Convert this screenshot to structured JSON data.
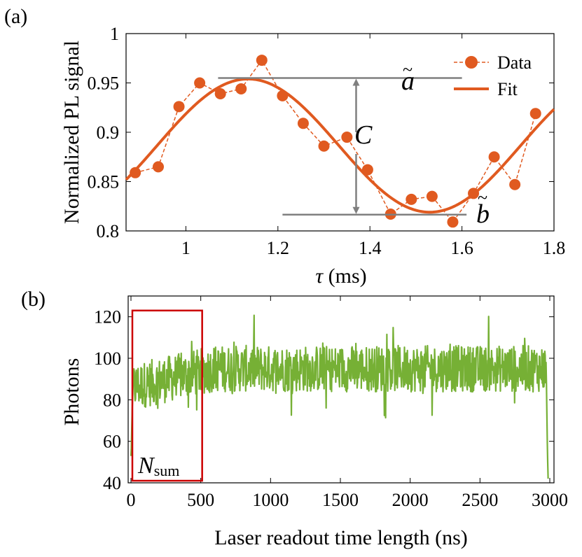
{
  "colors": {
    "series": "#e05a20",
    "photons": "#76b035",
    "annotation": "#7f7f7f",
    "box": "#cc0000"
  },
  "chart_data": [
    {
      "id": "a",
      "panel_label": "(a)",
      "type": "line",
      "xlabel": "τ (ms)",
      "xlabel_symbol": "τ",
      "xlabel_unit": " (ms)",
      "ylabel": "Normalized PL signal",
      "xlim": [
        0.87,
        1.8
      ],
      "ylim": [
        0.8,
        1.0
      ],
      "xticks": [
        1,
        1.2,
        1.4,
        1.6,
        1.8
      ],
      "xtick_labels": [
        "1",
        "1.2",
        "1.4",
        "1.6",
        "1.8"
      ],
      "yticks": [
        0.8,
        0.85,
        0.9,
        0.95,
        1.0
      ],
      "ytick_labels": [
        "0.8",
        "0.85",
        "0.9",
        "0.95",
        "1"
      ],
      "legend": {
        "position": "top-right",
        "entries": [
          "Data",
          "Fit"
        ]
      },
      "series": [
        {
          "name": "Data",
          "style": "dashed line with circle markers",
          "x": [
            0.89,
            0.94,
            0.985,
            1.03,
            1.075,
            1.12,
            1.165,
            1.21,
            1.255,
            1.3,
            1.35,
            1.395,
            1.445,
            1.49,
            1.535,
            1.58,
            1.625,
            1.67,
            1.715,
            1.76
          ],
          "y": [
            0.859,
            0.865,
            0.926,
            0.95,
            0.939,
            0.944,
            0.973,
            0.937,
            0.909,
            0.886,
            0.895,
            0.862,
            0.817,
            0.832,
            0.835,
            0.809,
            0.838,
            0.875,
            0.847,
            0.919
          ]
        },
        {
          "name": "Fit",
          "style": "solid line",
          "function": "sine",
          "x_range": [
            0.87,
            1.8
          ],
          "offset": 0.8865,
          "amplitude": 0.0675,
          "peak_x": 1.135,
          "period": 0.79
        }
      ],
      "annotations": {
        "a_label_main": "a",
        "a_label_accent": "~",
        "b_label_main": "b",
        "b_label_accent": "~",
        "c_label": "C",
        "a_level": 0.955,
        "b_level": 0.8165,
        "a_line_x": [
          1.07,
          1.6
        ],
        "b_line_x": [
          1.21,
          1.61
        ],
        "arrow_x": 1.37
      }
    },
    {
      "id": "b",
      "panel_label": "(b)",
      "type": "line",
      "xlabel": "Laser readout time length (ns)",
      "ylabel": "Photons",
      "xlim": [
        -20,
        3030
      ],
      "ylim": [
        40,
        130
      ],
      "xticks": [
        0,
        500,
        1000,
        1500,
        2000,
        2500,
        3000
      ],
      "xtick_labels": [
        "0",
        "500",
        "1000",
        "1500",
        "2000",
        "2500",
        "3000"
      ],
      "yticks": [
        40,
        60,
        80,
        100,
        120
      ],
      "ytick_labels": [
        "40",
        "60",
        "80",
        "100",
        "120"
      ],
      "series": [
        {
          "name": "Photons",
          "style": "solid noisy line",
          "x_start": 0,
          "x_end": 2990,
          "x_step": 3,
          "baseline_early": 86,
          "baseline_late": 95,
          "noise_amplitude": 16,
          "start_values": [
            52,
            58,
            66,
            72,
            80,
            86,
            92
          ],
          "end_values": [
            98,
            88,
            74,
            60,
            50,
            42
          ]
        }
      ],
      "annotations": {
        "box_label_main": "N",
        "box_label_sub": "sum",
        "box_x_range": [
          0,
          500
        ],
        "box_y_range": [
          40,
          123
        ]
      }
    }
  ]
}
